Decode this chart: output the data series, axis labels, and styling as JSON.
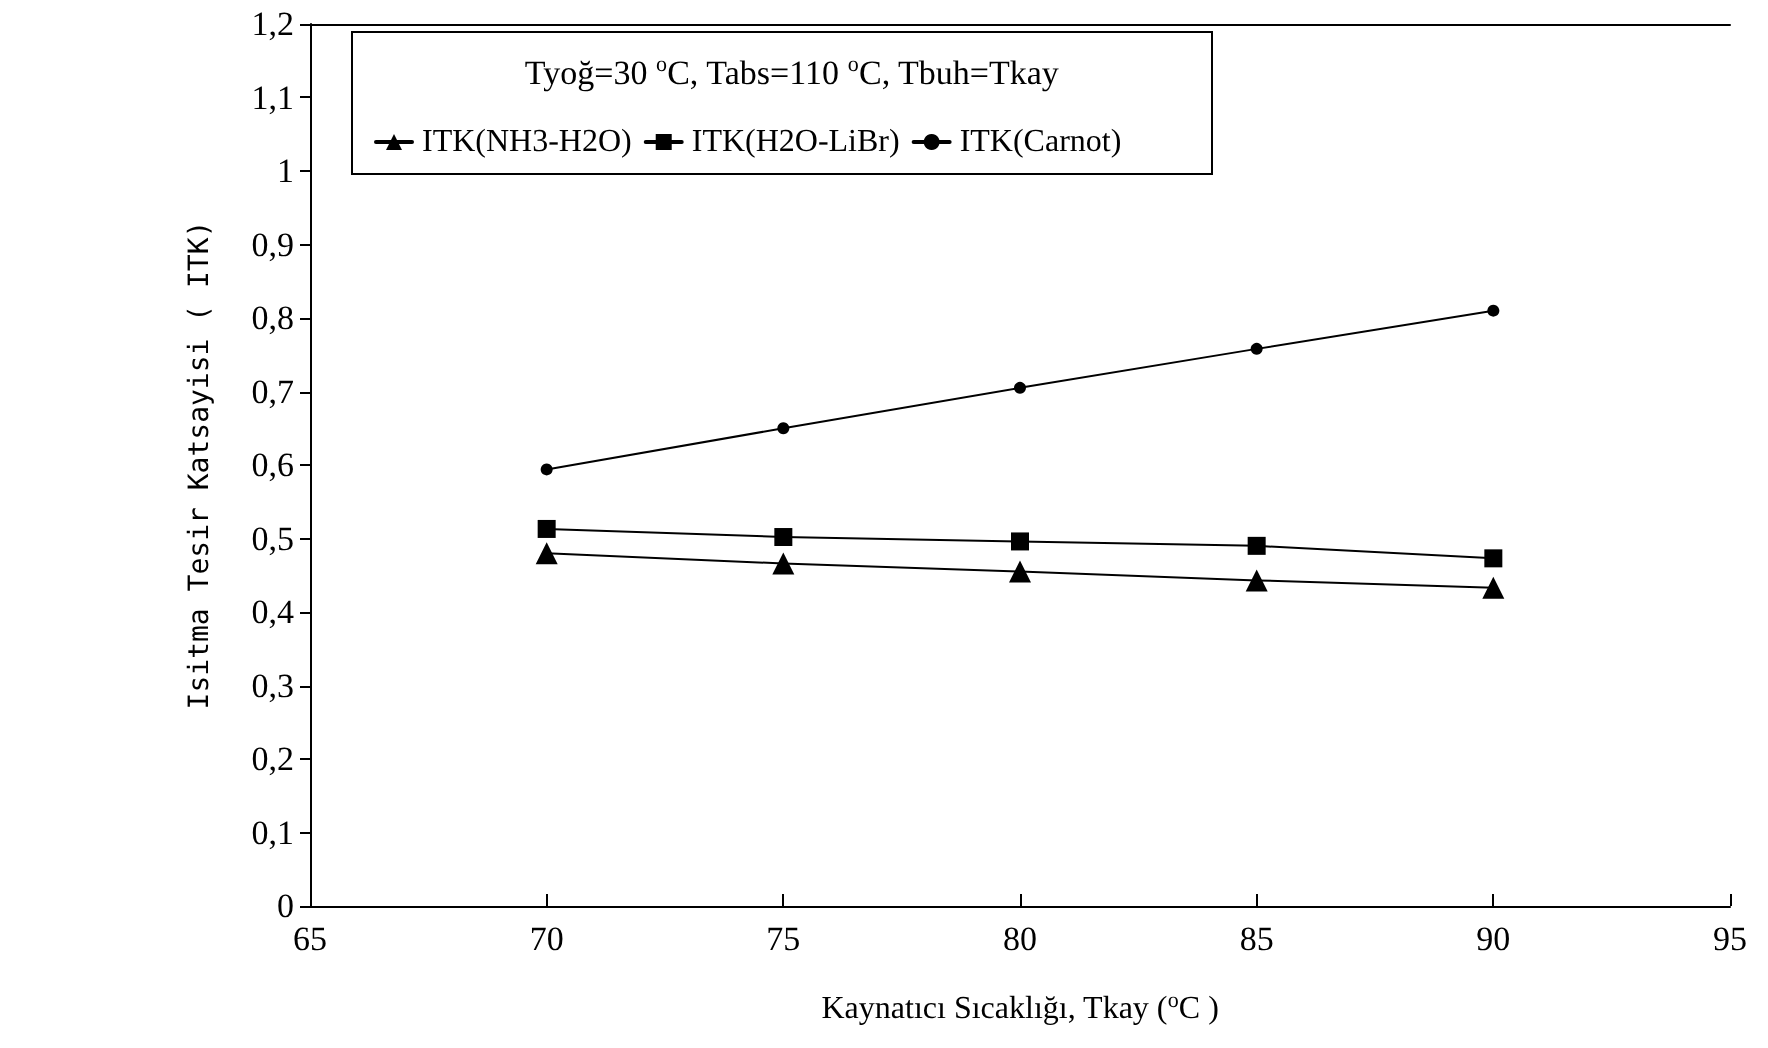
{
  "chart_data": {
    "type": "line",
    "legend_title": "Tyoğ=30 $^{o}$C, Tabs=110 $^{o}$C, Tbuh=Tkay",
    "xlabel": "Kaynatıcı Sıcaklığı, Tkay ($^{o}$C )",
    "ylabel": "Isitma Tesir Katsayisi ( ITK)",
    "x": [
      70,
      75,
      80,
      85,
      90
    ],
    "series": [
      {
        "name": "ITK(NH3-H2O)",
        "color": "#000000",
        "marker": "triangle",
        "values": [
          0.48,
          0.466,
          0.455,
          0.443,
          0.433
        ]
      },
      {
        "name": "ITK(H2O-LiBr)",
        "color": "#000000",
        "marker": "square",
        "values": [
          0.513,
          0.502,
          0.496,
          0.49,
          0.473
        ]
      },
      {
        "name": "ITK(Carnot)",
        "color": "#000000",
        "marker": "circle",
        "values": [
          0.594,
          0.65,
          0.705,
          0.758,
          0.81
        ]
      }
    ],
    "xlim": [
      65,
      95
    ],
    "xticks": [
      65,
      70,
      75,
      80,
      85,
      90,
      95
    ],
    "ylim": [
      0,
      1.2
    ],
    "yticks": [
      0,
      {
        "value": 0.1,
        "label": "0,1"
      },
      {
        "value": 0.2,
        "label": "0,2"
      },
      {
        "value": 0.3,
        "label": "0,3"
      },
      {
        "value": 0.4,
        "label": "0,4"
      },
      {
        "value": 0.5,
        "label": "0,5"
      },
      {
        "value": 0.6,
        "label": "0,6"
      },
      {
        "value": 0.7,
        "label": "0,7"
      },
      {
        "value": 0.8,
        "label": "0,8"
      },
      {
        "value": 0.9,
        "label": "0,9"
      },
      1,
      {
        "value": 1.1,
        "label": "1,1"
      },
      {
        "value": 1.2,
        "label": "1,2"
      }
    ],
    "grid": false,
    "legend": "top",
    "line_style": "solid"
  }
}
